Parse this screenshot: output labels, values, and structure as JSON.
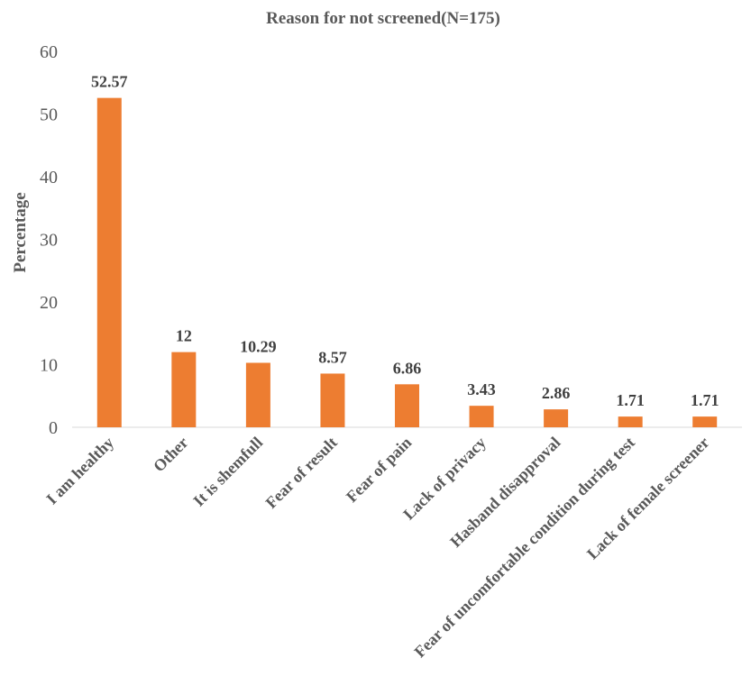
{
  "chart_data": {
    "type": "bar",
    "title": "Reason for not screened(N=175)",
    "xlabel": "",
    "ylabel": "Percentage",
    "ylim": [
      0,
      60
    ],
    "yticks": [
      0,
      10,
      20,
      30,
      40,
      50,
      60
    ],
    "grid": false,
    "legend": "none",
    "bar_color": "#ED7D31",
    "categories": [
      "I am  healthy",
      "Other",
      "It is shemfull",
      "Fear of result",
      "Fear of pain",
      "Lack of privacy",
      "Hasband disapproval",
      "Fear of uncomfortable condition during test",
      "Lack of female screener"
    ],
    "values": [
      52.57,
      12,
      10.29,
      8.57,
      6.86,
      3.43,
      2.86,
      1.71,
      1.71
    ],
    "data_labels": [
      "52.57",
      "12",
      "10.29",
      "8.57",
      "6.86",
      "3.43",
      "2.86",
      "1.71",
      "1.71"
    ]
  }
}
